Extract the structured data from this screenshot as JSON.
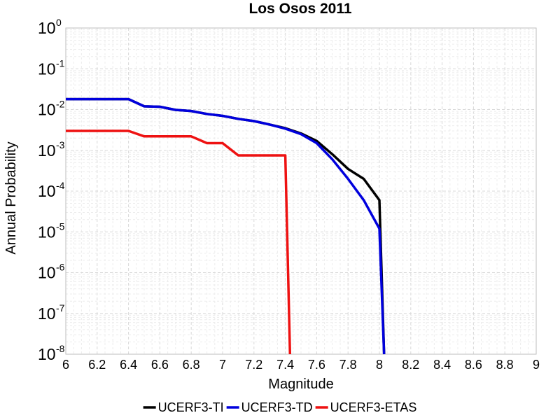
{
  "chart_data": {
    "type": "line",
    "title": "Los Osos 2011",
    "xlabel": "Magnitude",
    "ylabel": "Annual Probability",
    "xlim": [
      6,
      9
    ],
    "ylim": [
      1e-08,
      1
    ],
    "yscale": "log",
    "grid": true,
    "legend_position": "bottom",
    "x_ticks": [
      "6",
      "6.2",
      "6.4",
      "6.6",
      "6.8",
      "7",
      "7.2",
      "7.4",
      "7.6",
      "7.8",
      "8",
      "8.2",
      "8.4",
      "8.6",
      "8.8",
      "9"
    ],
    "y_ticks": [
      {
        "base": "10",
        "exp": "0"
      },
      {
        "base": "10",
        "exp": "-1"
      },
      {
        "base": "10",
        "exp": "-2"
      },
      {
        "base": "10",
        "exp": "-3"
      },
      {
        "base": "10",
        "exp": "-4"
      },
      {
        "base": "10",
        "exp": "-5"
      },
      {
        "base": "10",
        "exp": "-6"
      },
      {
        "base": "10",
        "exp": "-7"
      },
      {
        "base": "10",
        "exp": "-8"
      }
    ],
    "series": [
      {
        "name": "UCERF3-TI",
        "color": "#000000",
        "x": [
          6.0,
          6.4,
          6.5,
          6.6,
          6.7,
          6.8,
          6.9,
          7.0,
          7.1,
          7.2,
          7.3,
          7.4,
          7.5,
          7.6,
          7.7,
          7.8,
          7.9,
          8.0,
          8.03
        ],
        "y": [
          0.018,
          0.018,
          0.012,
          0.0117,
          0.0098,
          0.0092,
          0.0078,
          0.007,
          0.0059,
          0.0052,
          0.0043,
          0.0035,
          0.0026,
          0.0017,
          0.0008,
          0.00035,
          0.0002,
          6e-05,
          1e-08
        ]
      },
      {
        "name": "UCERF3-TD",
        "color": "#0000dd",
        "x": [
          6.0,
          6.4,
          6.5,
          6.6,
          6.7,
          6.8,
          6.9,
          7.0,
          7.1,
          7.2,
          7.3,
          7.4,
          7.5,
          7.6,
          7.7,
          7.8,
          7.9,
          8.0,
          8.03
        ],
        "y": [
          0.018,
          0.018,
          0.012,
          0.0117,
          0.0098,
          0.0092,
          0.0078,
          0.007,
          0.0059,
          0.0052,
          0.0043,
          0.0034,
          0.0025,
          0.0015,
          0.0006,
          0.0002,
          6e-05,
          1.2e-05,
          1e-08
        ]
      },
      {
        "name": "UCERF3-ETAS",
        "color": "#ee1111",
        "x": [
          6.0,
          6.4,
          6.5,
          6.6,
          6.7,
          6.8,
          6.9,
          7.0,
          7.1,
          7.2,
          7.3,
          7.4,
          7.43
        ],
        "y": [
          0.003,
          0.003,
          0.0022,
          0.0022,
          0.0022,
          0.0022,
          0.0015,
          0.0015,
          0.00075,
          0.00075,
          0.00075,
          0.00075,
          1e-08
        ]
      }
    ]
  }
}
